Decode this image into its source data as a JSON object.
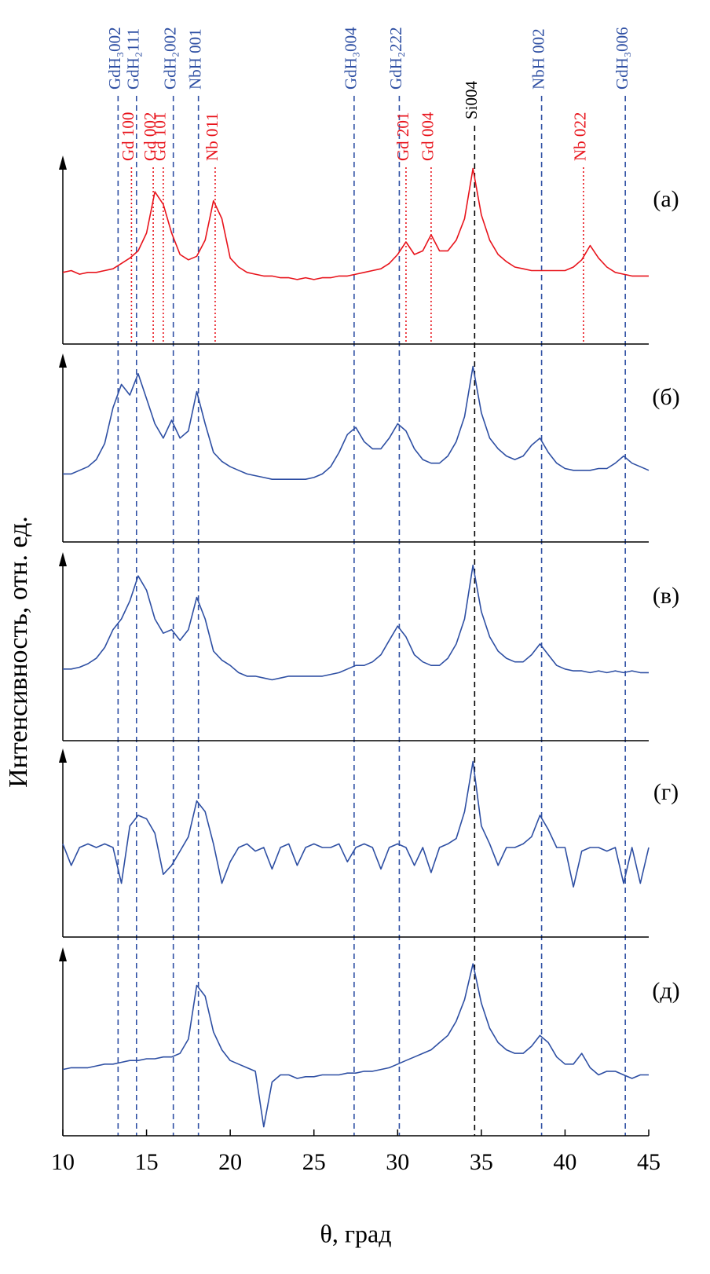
{
  "chart_data": {
    "type": "line",
    "xlabel": "θ, град",
    "ylabel": "Интенсивность, отн. ед.",
    "xlim": [
      10,
      45
    ],
    "xticks": [
      10,
      15,
      20,
      25,
      30,
      35,
      40,
      45
    ],
    "ylim": [
      0,
      100
    ],
    "x": [
      10,
      10.5,
      11,
      11.5,
      12,
      12.5,
      13,
      13.5,
      14,
      14.5,
      15,
      15.5,
      16,
      16.5,
      17,
      17.5,
      18,
      18.5,
      19,
      19.5,
      20,
      20.5,
      21,
      21.5,
      22,
      22.5,
      23,
      23.5,
      24,
      24.5,
      25,
      25.5,
      26,
      26.5,
      27,
      27.5,
      28,
      28.5,
      29,
      29.5,
      30,
      30.5,
      31,
      31.5,
      32,
      32.5,
      33,
      33.5,
      34,
      34.5,
      35,
      35.5,
      36,
      36.5,
      37,
      37.5,
      38,
      38.5,
      39,
      39.5,
      40,
      40.5,
      41,
      41.5,
      42,
      42.5,
      43,
      43.5,
      44,
      44.5,
      45
    ],
    "series": [
      {
        "name": "(а)",
        "color": "#e8141c",
        "values": [
          40,
          41,
          39,
          40,
          40,
          41,
          42,
          45,
          48,
          52,
          62,
          85,
          78,
          62,
          50,
          47,
          49,
          58,
          80,
          70,
          48,
          43,
          40,
          39,
          38,
          38,
          37,
          37,
          36,
          37,
          36,
          37,
          37,
          38,
          38,
          39,
          40,
          41,
          42,
          45,
          50,
          57,
          50,
          52,
          61,
          52,
          52,
          58,
          70,
          98,
          72,
          58,
          50,
          46,
          43,
          42,
          41,
          41,
          41,
          41,
          41,
          43,
          47,
          55,
          48,
          43,
          40,
          39,
          38,
          38,
          38
        ]
      },
      {
        "name": "(б)",
        "color": "#2e4fa3",
        "values": [
          38,
          38,
          40,
          42,
          46,
          55,
          75,
          88,
          82,
          94,
          80,
          66,
          58,
          68,
          58,
          62,
          84,
          66,
          50,
          45,
          42,
          40,
          38,
          37,
          36,
          35,
          35,
          35,
          35,
          35,
          36,
          38,
          42,
          50,
          60,
          64,
          56,
          52,
          52,
          58,
          66,
          62,
          52,
          46,
          44,
          44,
          48,
          56,
          70,
          98,
          72,
          58,
          52,
          48,
          46,
          48,
          54,
          58,
          50,
          44,
          41,
          40,
          40,
          40,
          41,
          41,
          44,
          48,
          44,
          42,
          40
        ]
      },
      {
        "name": "(в)",
        "color": "#2e4fa3",
        "values": [
          40,
          40,
          41,
          43,
          46,
          52,
          62,
          68,
          78,
          92,
          84,
          68,
          60,
          62,
          56,
          62,
          80,
          68,
          50,
          45,
          42,
          38,
          36,
          36,
          35,
          34,
          35,
          36,
          36,
          36,
          36,
          36,
          37,
          38,
          40,
          42,
          42,
          44,
          48,
          56,
          64,
          58,
          48,
          44,
          42,
          42,
          46,
          54,
          68,
          98,
          72,
          58,
          50,
          46,
          44,
          44,
          48,
          54,
          48,
          42,
          40,
          39,
          39,
          38,
          39,
          38,
          39,
          38,
          39,
          38,
          38
        ]
      },
      {
        "name": "(г)",
        "color": "#2e4fa3",
        "values": [
          52,
          40,
          50,
          52,
          50,
          52,
          50,
          30,
          62,
          68,
          66,
          58,
          35,
          40,
          48,
          56,
          76,
          70,
          52,
          30,
          42,
          50,
          52,
          48,
          50,
          38,
          50,
          52,
          40,
          50,
          52,
          50,
          50,
          52,
          42,
          50,
          52,
          50,
          38,
          50,
          52,
          50,
          40,
          50,
          36,
          50,
          52,
          55,
          70,
          98,
          62,
          52,
          40,
          50,
          50,
          52,
          56,
          68,
          60,
          50,
          50,
          28,
          48,
          50,
          50,
          48,
          50,
          30,
          50,
          30,
          50
        ]
      },
      {
        "name": "(д)",
        "color": "#2e4fa3",
        "values": [
          37,
          38,
          38,
          38,
          39,
          40,
          40,
          41,
          42,
          42,
          43,
          43,
          44,
          44,
          46,
          54,
          84,
          78,
          58,
          48,
          42,
          40,
          38,
          36,
          5,
          30,
          34,
          34,
          32,
          33,
          33,
          34,
          34,
          34,
          35,
          35,
          36,
          36,
          37,
          38,
          40,
          42,
          44,
          46,
          48,
          52,
          56,
          64,
          76,
          96,
          74,
          60,
          52,
          48,
          46,
          46,
          50,
          56,
          52,
          44,
          40,
          40,
          46,
          38,
          34,
          36,
          36,
          34,
          32,
          34,
          34
        ]
      }
    ],
    "annotations": [
      {
        "text": "GdH₃002",
        "x": 13.3,
        "color": "#2e4fa3",
        "style": "dashed"
      },
      {
        "text": "GdH₂111",
        "x": 14.4,
        "color": "#2e4fa3",
        "style": "dashed"
      },
      {
        "text": "GdH₂002",
        "x": 16.6,
        "color": "#2e4fa3",
        "style": "dashed"
      },
      {
        "text": "NbH 001",
        "x": 18.1,
        "color": "#2e4fa3",
        "style": "dashed"
      },
      {
        "text": "GdH₃004",
        "x": 27.4,
        "color": "#2e4fa3",
        "style": "dashed"
      },
      {
        "text": "GdH₂222",
        "x": 30.1,
        "color": "#2e4fa3",
        "style": "dashed"
      },
      {
        "text": "NbH 002",
        "x": 38.6,
        "color": "#2e4fa3",
        "style": "dashed"
      },
      {
        "text": "GdH₃006",
        "x": 43.6,
        "color": "#2e4fa3",
        "style": "dashed"
      },
      {
        "text": "Si004",
        "x": 34.6,
        "color": "#000000",
        "style": "dashed"
      },
      {
        "text": "Gd 100",
        "x": 14.1,
        "color": "#e8141c",
        "style": "dotted"
      },
      {
        "text": "Gd 002",
        "x": 15.4,
        "color": "#e8141c",
        "style": "dotted"
      },
      {
        "text": "Gd 101",
        "x": 16.0,
        "color": "#e8141c",
        "style": "dotted"
      },
      {
        "text": "Nb 011",
        "x": 19.1,
        "color": "#e8141c",
        "style": "dotted"
      },
      {
        "text": "Gd 201",
        "x": 30.5,
        "color": "#e8141c",
        "style": "dotted"
      },
      {
        "text": "Gd 004",
        "x": 32.0,
        "color": "#e8141c",
        "style": "dotted"
      },
      {
        "text": "Nb 022",
        "x": 41.1,
        "color": "#e8141c",
        "style": "dotted"
      }
    ]
  }
}
